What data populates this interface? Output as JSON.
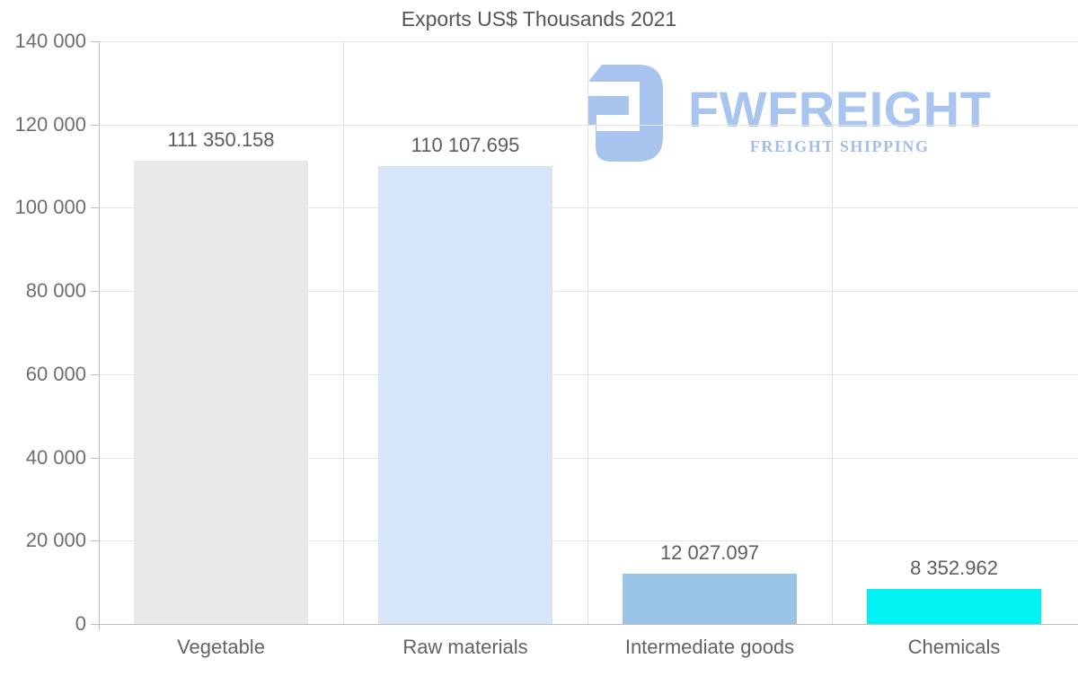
{
  "title": "Exports US$ Thousands 2021",
  "logo": {
    "name": "FWFREIGHT",
    "tagline": "FREIGHT SHIPPING",
    "icon": "fwfreight-logo-icon",
    "color": "#a9c4ee",
    "tagline_color": "#a2bdeb"
  },
  "chart_data": {
    "type": "bar",
    "title": "Exports US$ Thousands 2021",
    "categories": [
      "Vegetable",
      "Raw materials",
      "Intermediate goods",
      "Chemicals"
    ],
    "values": [
      111350.158,
      110107.695,
      12027.097,
      8352.962
    ],
    "value_labels": [
      "111 350.158",
      "110 107.695",
      "12 027.097",
      "8 352.962"
    ],
    "bar_colors": [
      "#e8e8e8",
      "#d6e6f8",
      "#9ac4e8",
      "#00f2f2"
    ],
    "xlabel": "",
    "ylabel": "",
    "ylim": [
      0,
      140000
    ],
    "ytick_interval": 20000,
    "ytick_labels": [
      "0",
      "20 000",
      "40 000",
      "60 000",
      "80 000",
      "100 000",
      "120 000",
      "140 000"
    ],
    "grid": true,
    "legend": false,
    "colors": {
      "title_text": "#565656",
      "tick_text": "#6e6e6e",
      "value_text": "#5d5d5d",
      "gridline": "#e5e5e5",
      "axis": "#bdbdbd",
      "background": "#ffffff"
    }
  }
}
